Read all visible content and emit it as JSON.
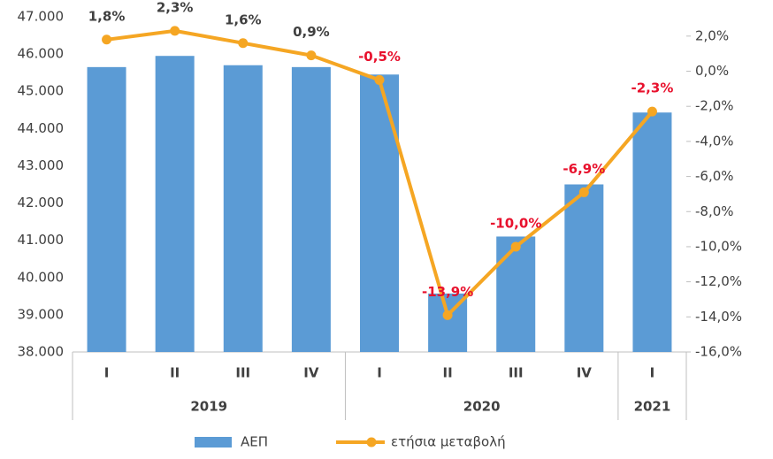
{
  "chart_data": {
    "type": "bar_line",
    "groups": [
      {
        "label": "2019",
        "categories": [
          "I",
          "II",
          "III",
          "IV"
        ]
      },
      {
        "label": "2020",
        "categories": [
          "I",
          "II",
          "III",
          "IV"
        ]
      },
      {
        "label": "2021",
        "categories": [
          "I"
        ]
      }
    ],
    "series": [
      {
        "name": "ΑΕΠ",
        "type": "bar",
        "color": "#5b9bd5",
        "values": [
          45650,
          45950,
          45700,
          45650,
          45450,
          39570,
          41100,
          42500,
          44430
        ]
      },
      {
        "name": "ετήσια μεταβολή",
        "type": "line",
        "axis": "y2",
        "color": "#f5a623",
        "values": [
          1.8,
          2.3,
          1.6,
          0.9,
          -0.5,
          -13.9,
          -10.0,
          -6.9,
          -2.3
        ],
        "value_labels": [
          "1,8%",
          "2,3%",
          "1,6%",
          "0,9%",
          "-0,5%",
          "-13,9%",
          "-10,0%",
          "-6,9%",
          "-2,3%"
        ]
      }
    ],
    "ylim": [
      38000,
      47000
    ],
    "yticks": [
      {
        "value": 38000,
        "label": "38.000"
      },
      {
        "value": 39000,
        "label": "39.000"
      },
      {
        "value": 40000,
        "label": "40.000"
      },
      {
        "value": 41000,
        "label": "41.000"
      },
      {
        "value": 42000,
        "label": "42.000"
      },
      {
        "value": 43000,
        "label": "43.000"
      },
      {
        "value": 44000,
        "label": "44.000"
      },
      {
        "value": 45000,
        "label": "45.000"
      },
      {
        "value": 46000,
        "label": "46.000"
      },
      {
        "value": 47000,
        "label": "47.000"
      }
    ],
    "y2lim": [
      -16,
      3.1
    ],
    "y2ticks": [
      {
        "value": -16,
        "label": "-16,0%"
      },
      {
        "value": -14,
        "label": "-14,0%"
      },
      {
        "value": -12,
        "label": "-12,0%"
      },
      {
        "value": -10,
        "label": "-10,0%"
      },
      {
        "value": -8,
        "label": "-8,0%"
      },
      {
        "value": -6,
        "label": "-6,0%"
      },
      {
        "value": -4,
        "label": "-4,0%"
      },
      {
        "value": -2,
        "label": "-2,0%"
      },
      {
        "value": 0,
        "label": "0,0%"
      },
      {
        "value": 2,
        "label": "2,0%"
      }
    ],
    "negative_label_color": "#e8112d",
    "label_color": "#404040"
  }
}
